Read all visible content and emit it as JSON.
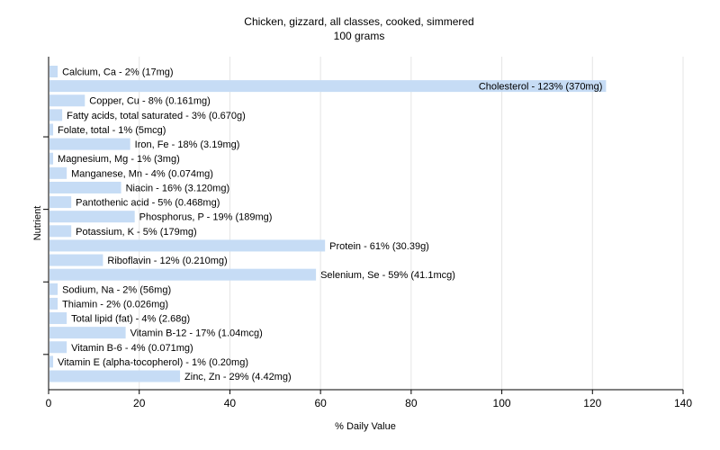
{
  "chart_data": {
    "type": "bar",
    "orientation": "horizontal",
    "title": "Chicken, gizzard, all classes, cooked, simmered",
    "subtitle": "100 grams",
    "xlabel": "% Daily Value",
    "ylabel": "Nutrient",
    "xlim": [
      0,
      140
    ],
    "xticks": [
      0,
      20,
      40,
      60,
      80,
      100,
      120,
      140
    ],
    "grid": true,
    "bar_color": "#c6dcf5",
    "categories": [
      "Calcium, Ca",
      "Cholesterol",
      "Copper, Cu",
      "Fatty acids, total saturated",
      "Folate, total",
      "Iron, Fe",
      "Magnesium, Mg",
      "Manganese, Mn",
      "Niacin",
      "Pantothenic acid",
      "Phosphorus, P",
      "Potassium, K",
      "Protein",
      "Riboflavin",
      "Selenium, Se",
      "Sodium, Na",
      "Thiamin",
      "Total lipid (fat)",
      "Vitamin B-12",
      "Vitamin B-6",
      "Vitamin E (alpha-tocopherol)",
      "Zinc, Zn"
    ],
    "values": [
      2,
      123,
      8,
      3,
      1,
      18,
      1,
      4,
      16,
      5,
      19,
      5,
      61,
      12,
      59,
      2,
      2,
      4,
      17,
      4,
      1,
      29
    ],
    "data_labels": [
      "Calcium, Ca - 2% (17mg)",
      "Cholesterol - 123% (370mg)",
      "Copper, Cu - 8% (0.161mg)",
      "Fatty acids, total saturated - 3% (0.670g)",
      "Folate, total - 1% (5mcg)",
      "Iron, Fe - 18% (3.19mg)",
      "Magnesium, Mg - 1% (3mg)",
      "Manganese, Mn - 4% (0.074mg)",
      "Niacin - 16% (3.120mg)",
      "Pantothenic acid - 5% (0.468mg)",
      "Phosphorus, P - 19% (189mg)",
      "Potassium, K - 5% (179mg)",
      "Protein - 61% (30.39g)",
      "Riboflavin - 12% (0.210mg)",
      "Selenium, Se - 59% (41.1mcg)",
      "Sodium, Na - 2% (56mg)",
      "Thiamin - 2% (0.026mg)",
      "Total lipid (fat) - 4% (2.68g)",
      "Vitamin B-12 - 17% (1.04mcg)",
      "Vitamin B-6 - 4% (0.071mg)",
      "Vitamin E (alpha-tocopherol) - 1% (0.20mg)",
      "Zinc, Zn - 29% (4.42mg)"
    ]
  }
}
